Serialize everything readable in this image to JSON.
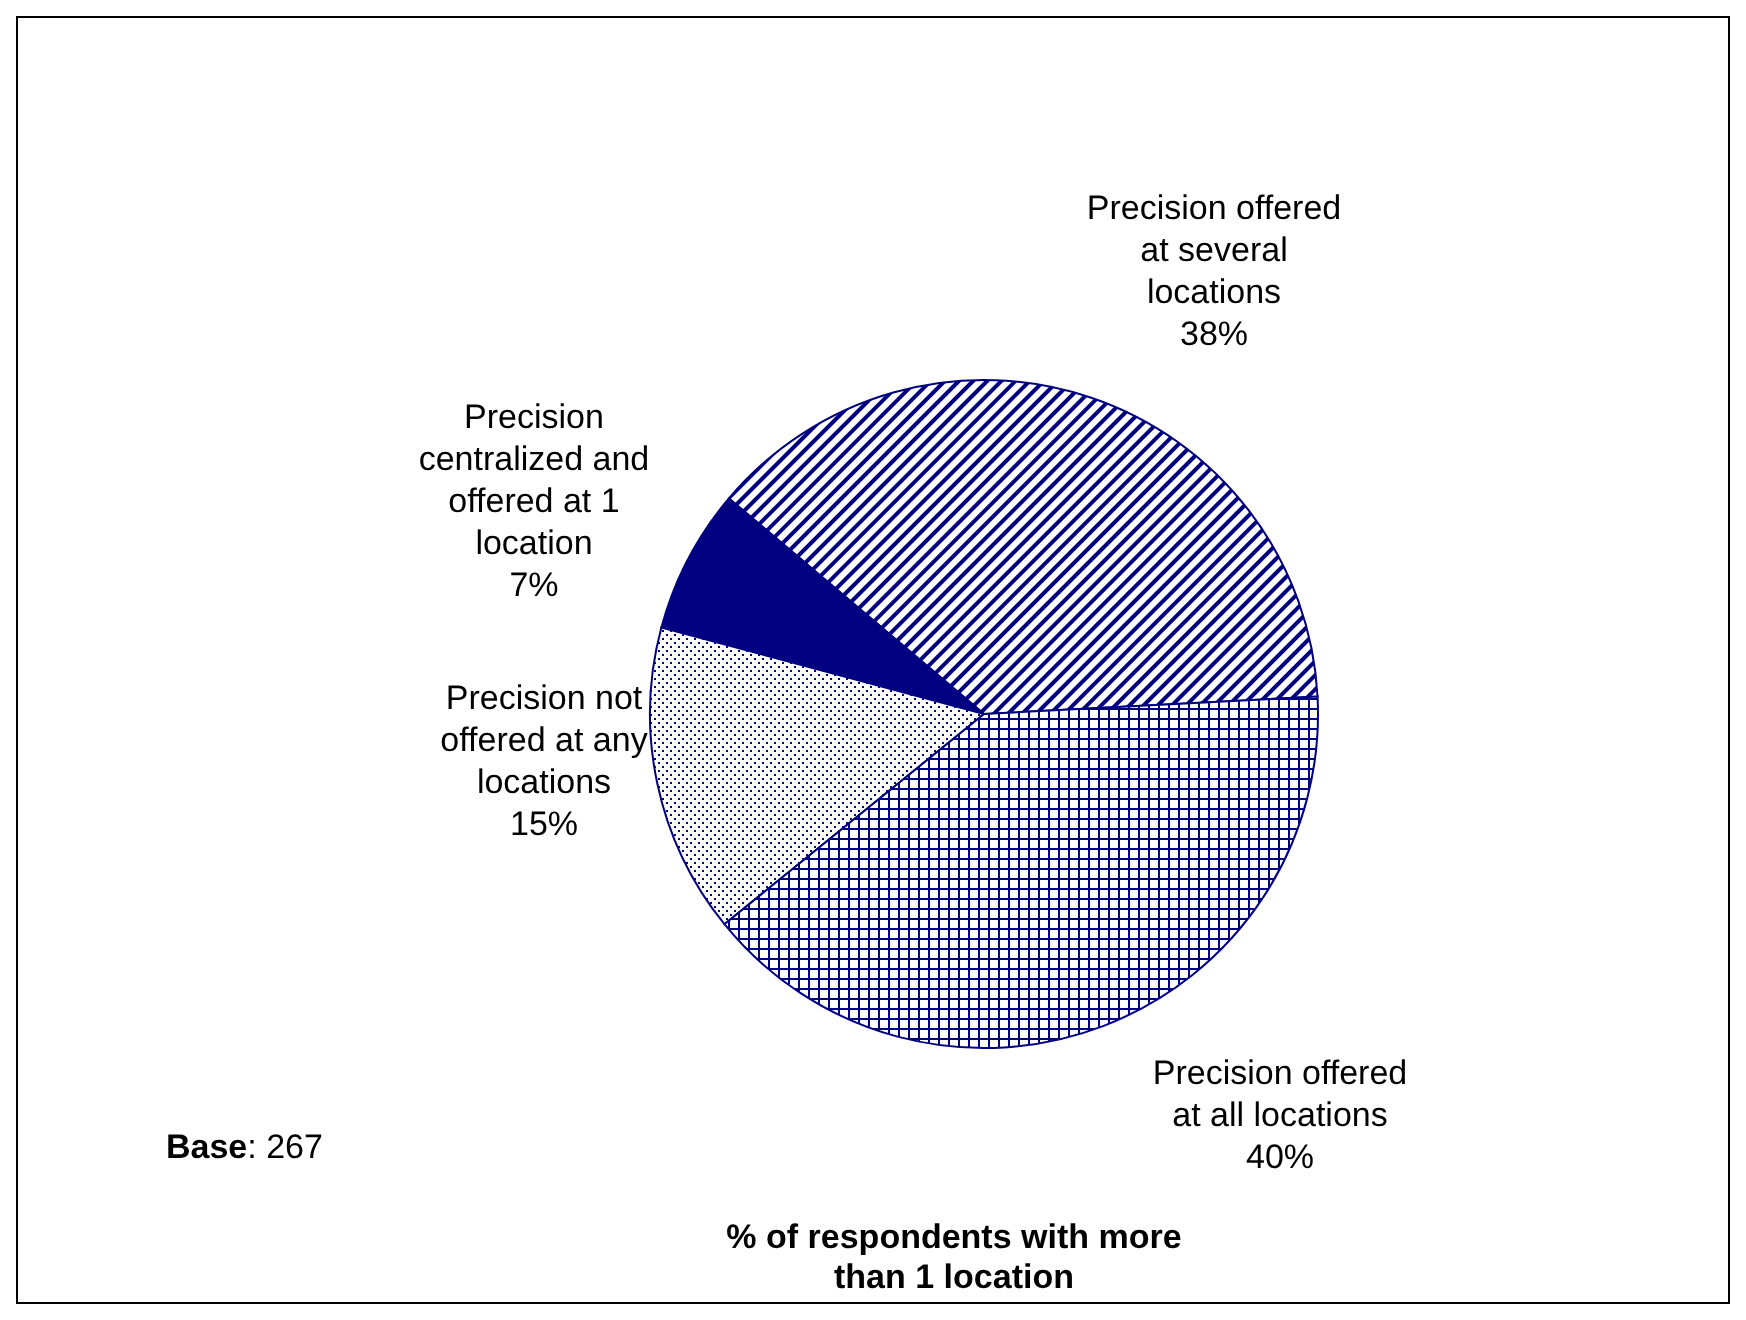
{
  "chart_data": {
    "type": "pie",
    "title": "% of respondents with more than 1 location",
    "categories": [
      "Precision offered at several locations",
      "Precision centralized and offered at 1 location",
      "Precision not offered at any locations",
      "Precision offered at all locations"
    ],
    "values": [
      38,
      7,
      15,
      40
    ],
    "value_labels": [
      "38%",
      "7%",
      "15%",
      "40%"
    ],
    "colors": [
      "#000080",
      "#000080",
      "#000080",
      "#000080"
    ],
    "legend": false,
    "annotations": [
      "Base: 267"
    ]
  }
}
